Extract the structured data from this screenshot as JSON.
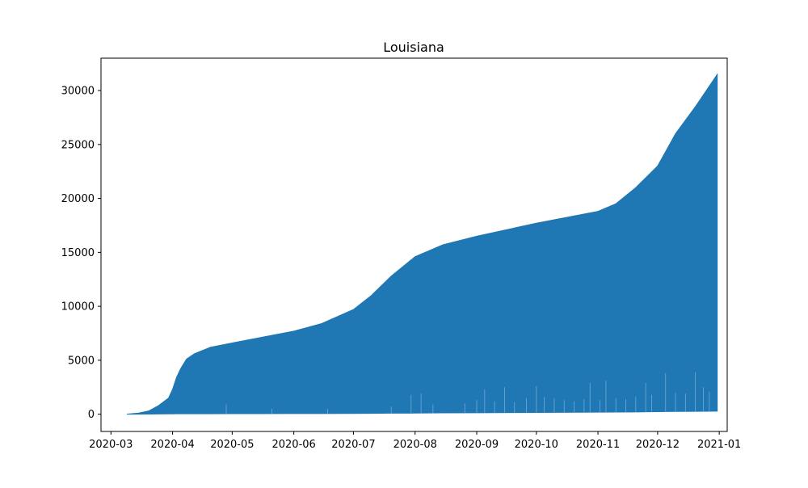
{
  "chart_data": {
    "type": "area",
    "title": "Louisiana",
    "xlabel": "",
    "ylabel": "",
    "x_ticks": [
      "2020-03",
      "2020-04",
      "2020-05",
      "2020-06",
      "2020-07",
      "2020-08",
      "2020-09",
      "2020-10",
      "2020-11",
      "2020-12",
      "2021-01"
    ],
    "y_ticks": [
      0,
      5000,
      10000,
      15000,
      20000,
      25000,
      30000
    ],
    "x_range": [
      "2020-02-25",
      "2021-01-05"
    ],
    "ylim": [
      -1600,
      33000
    ],
    "grid": false,
    "legend": "none",
    "series": [
      {
        "color": "#1f77b4",
        "x": [
          "2020-03-09",
          "2020-03-15",
          "2020-03-20",
          "2020-03-25",
          "2020-03-30",
          "2020-04-01",
          "2020-04-03",
          "2020-04-05",
          "2020-04-08",
          "2020-04-12",
          "2020-04-20",
          "2020-05-01",
          "2020-05-15",
          "2020-06-01",
          "2020-06-15",
          "2020-07-01",
          "2020-07-10",
          "2020-07-20",
          "2020-08-01",
          "2020-08-15",
          "2020-09-01",
          "2020-10-01",
          "2020-11-01",
          "2020-11-10",
          "2020-11-20",
          "2020-12-01",
          "2020-12-10",
          "2020-12-20",
          "2020-12-31"
        ],
        "upper": [
          0,
          100,
          300,
          800,
          1500,
          2300,
          3400,
          4200,
          5100,
          5600,
          6200,
          6600,
          7100,
          7700,
          8400,
          9700,
          11000,
          12800,
          14600,
          15700,
          16500,
          17700,
          18800,
          19500,
          21000,
          23000,
          26000,
          28500,
          31500
        ],
        "lower": [
          0,
          0,
          10,
          20,
          30,
          30,
          40,
          40,
          40,
          40,
          40,
          50,
          50,
          60,
          60,
          70,
          80,
          90,
          100,
          120,
          130,
          160,
          190,
          200,
          210,
          230,
          250,
          260,
          280
        ],
        "spikes": [
          [
            "2020-04-28",
            900
          ],
          [
            "2020-05-21",
            500
          ],
          [
            "2020-06-18",
            500
          ],
          [
            "2020-07-20",
            700
          ],
          [
            "2020-07-30",
            1800
          ],
          [
            "2020-08-04",
            1900
          ],
          [
            "2020-08-10",
            900
          ],
          [
            "2020-08-26",
            1000
          ],
          [
            "2020-09-01",
            1300
          ],
          [
            "2020-09-05",
            2300
          ],
          [
            "2020-09-10",
            1200
          ],
          [
            "2020-09-15",
            2500
          ],
          [
            "2020-09-20",
            1100
          ],
          [
            "2020-09-26",
            1500
          ],
          [
            "2020-10-01",
            2600
          ],
          [
            "2020-10-05",
            1600
          ],
          [
            "2020-10-10",
            1500
          ],
          [
            "2020-10-15",
            1300
          ],
          [
            "2020-10-20",
            1200
          ],
          [
            "2020-10-25",
            1400
          ],
          [
            "2020-10-28",
            2900
          ],
          [
            "2020-11-02",
            1300
          ],
          [
            "2020-11-05",
            3100
          ],
          [
            "2020-11-10",
            1500
          ],
          [
            "2020-11-15",
            1400
          ],
          [
            "2020-11-20",
            1600
          ],
          [
            "2020-11-25",
            2900
          ],
          [
            "2020-11-28",
            1800
          ],
          [
            "2020-12-05",
            3800
          ],
          [
            "2020-12-10",
            2000
          ],
          [
            "2020-12-15",
            1900
          ],
          [
            "2020-12-20",
            3900
          ],
          [
            "2020-12-24",
            2500
          ],
          [
            "2020-12-27",
            2100
          ]
        ]
      }
    ]
  }
}
